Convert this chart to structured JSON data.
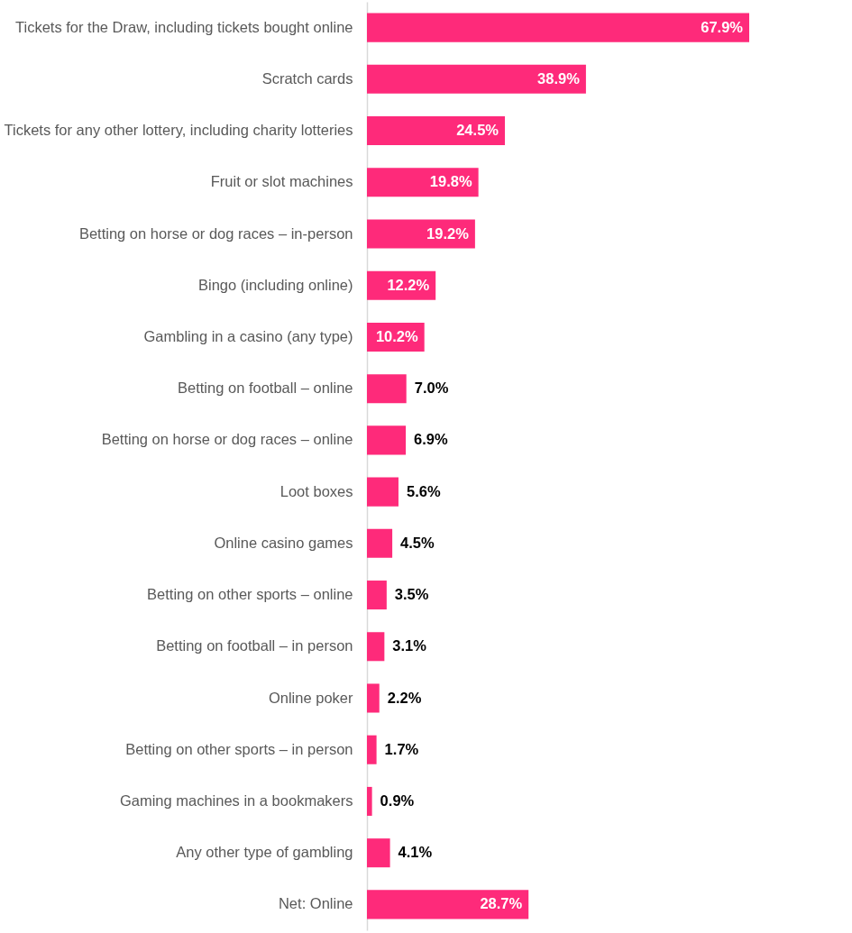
{
  "chart_data": {
    "type": "bar",
    "orientation": "horizontal",
    "value_labels": [
      "67.9%",
      "38.9%",
      "24.5%",
      "19.8%",
      "19.2%",
      "12.2%",
      "10.2%",
      "7.0%",
      "6.9%",
      "5.6%",
      "4.5%",
      "3.5%",
      "3.1%",
      "2.2%",
      "1.7%",
      "0.9%",
      "4.1%",
      "28.7%"
    ],
    "categories": [
      "Tickets for the Draw, including tickets bought online",
      "Scratch cards",
      "Tickets for any other lottery, including charity lotteries",
      "Fruit or slot machines",
      "Betting on horse or dog races – in-person",
      "Bingo (including online)",
      "Gambling in a casino (any type)",
      "Betting on football – online",
      "Betting on horse or dog races – online",
      "Loot boxes",
      "Online casino games",
      "Betting on other sports – online",
      "Betting on football – in person",
      "Online poker",
      "Betting on other sports – in person",
      "Gaming machines in a bookmakers",
      "Any other type of gambling",
      "Net: Online"
    ],
    "values": [
      67.9,
      38.9,
      24.5,
      19.8,
      19.2,
      12.2,
      10.2,
      7.0,
      6.9,
      5.6,
      4.5,
      3.5,
      3.1,
      2.2,
      1.7,
      0.9,
      4.1,
      28.7
    ],
    "color": "#fe2a7a"
  }
}
